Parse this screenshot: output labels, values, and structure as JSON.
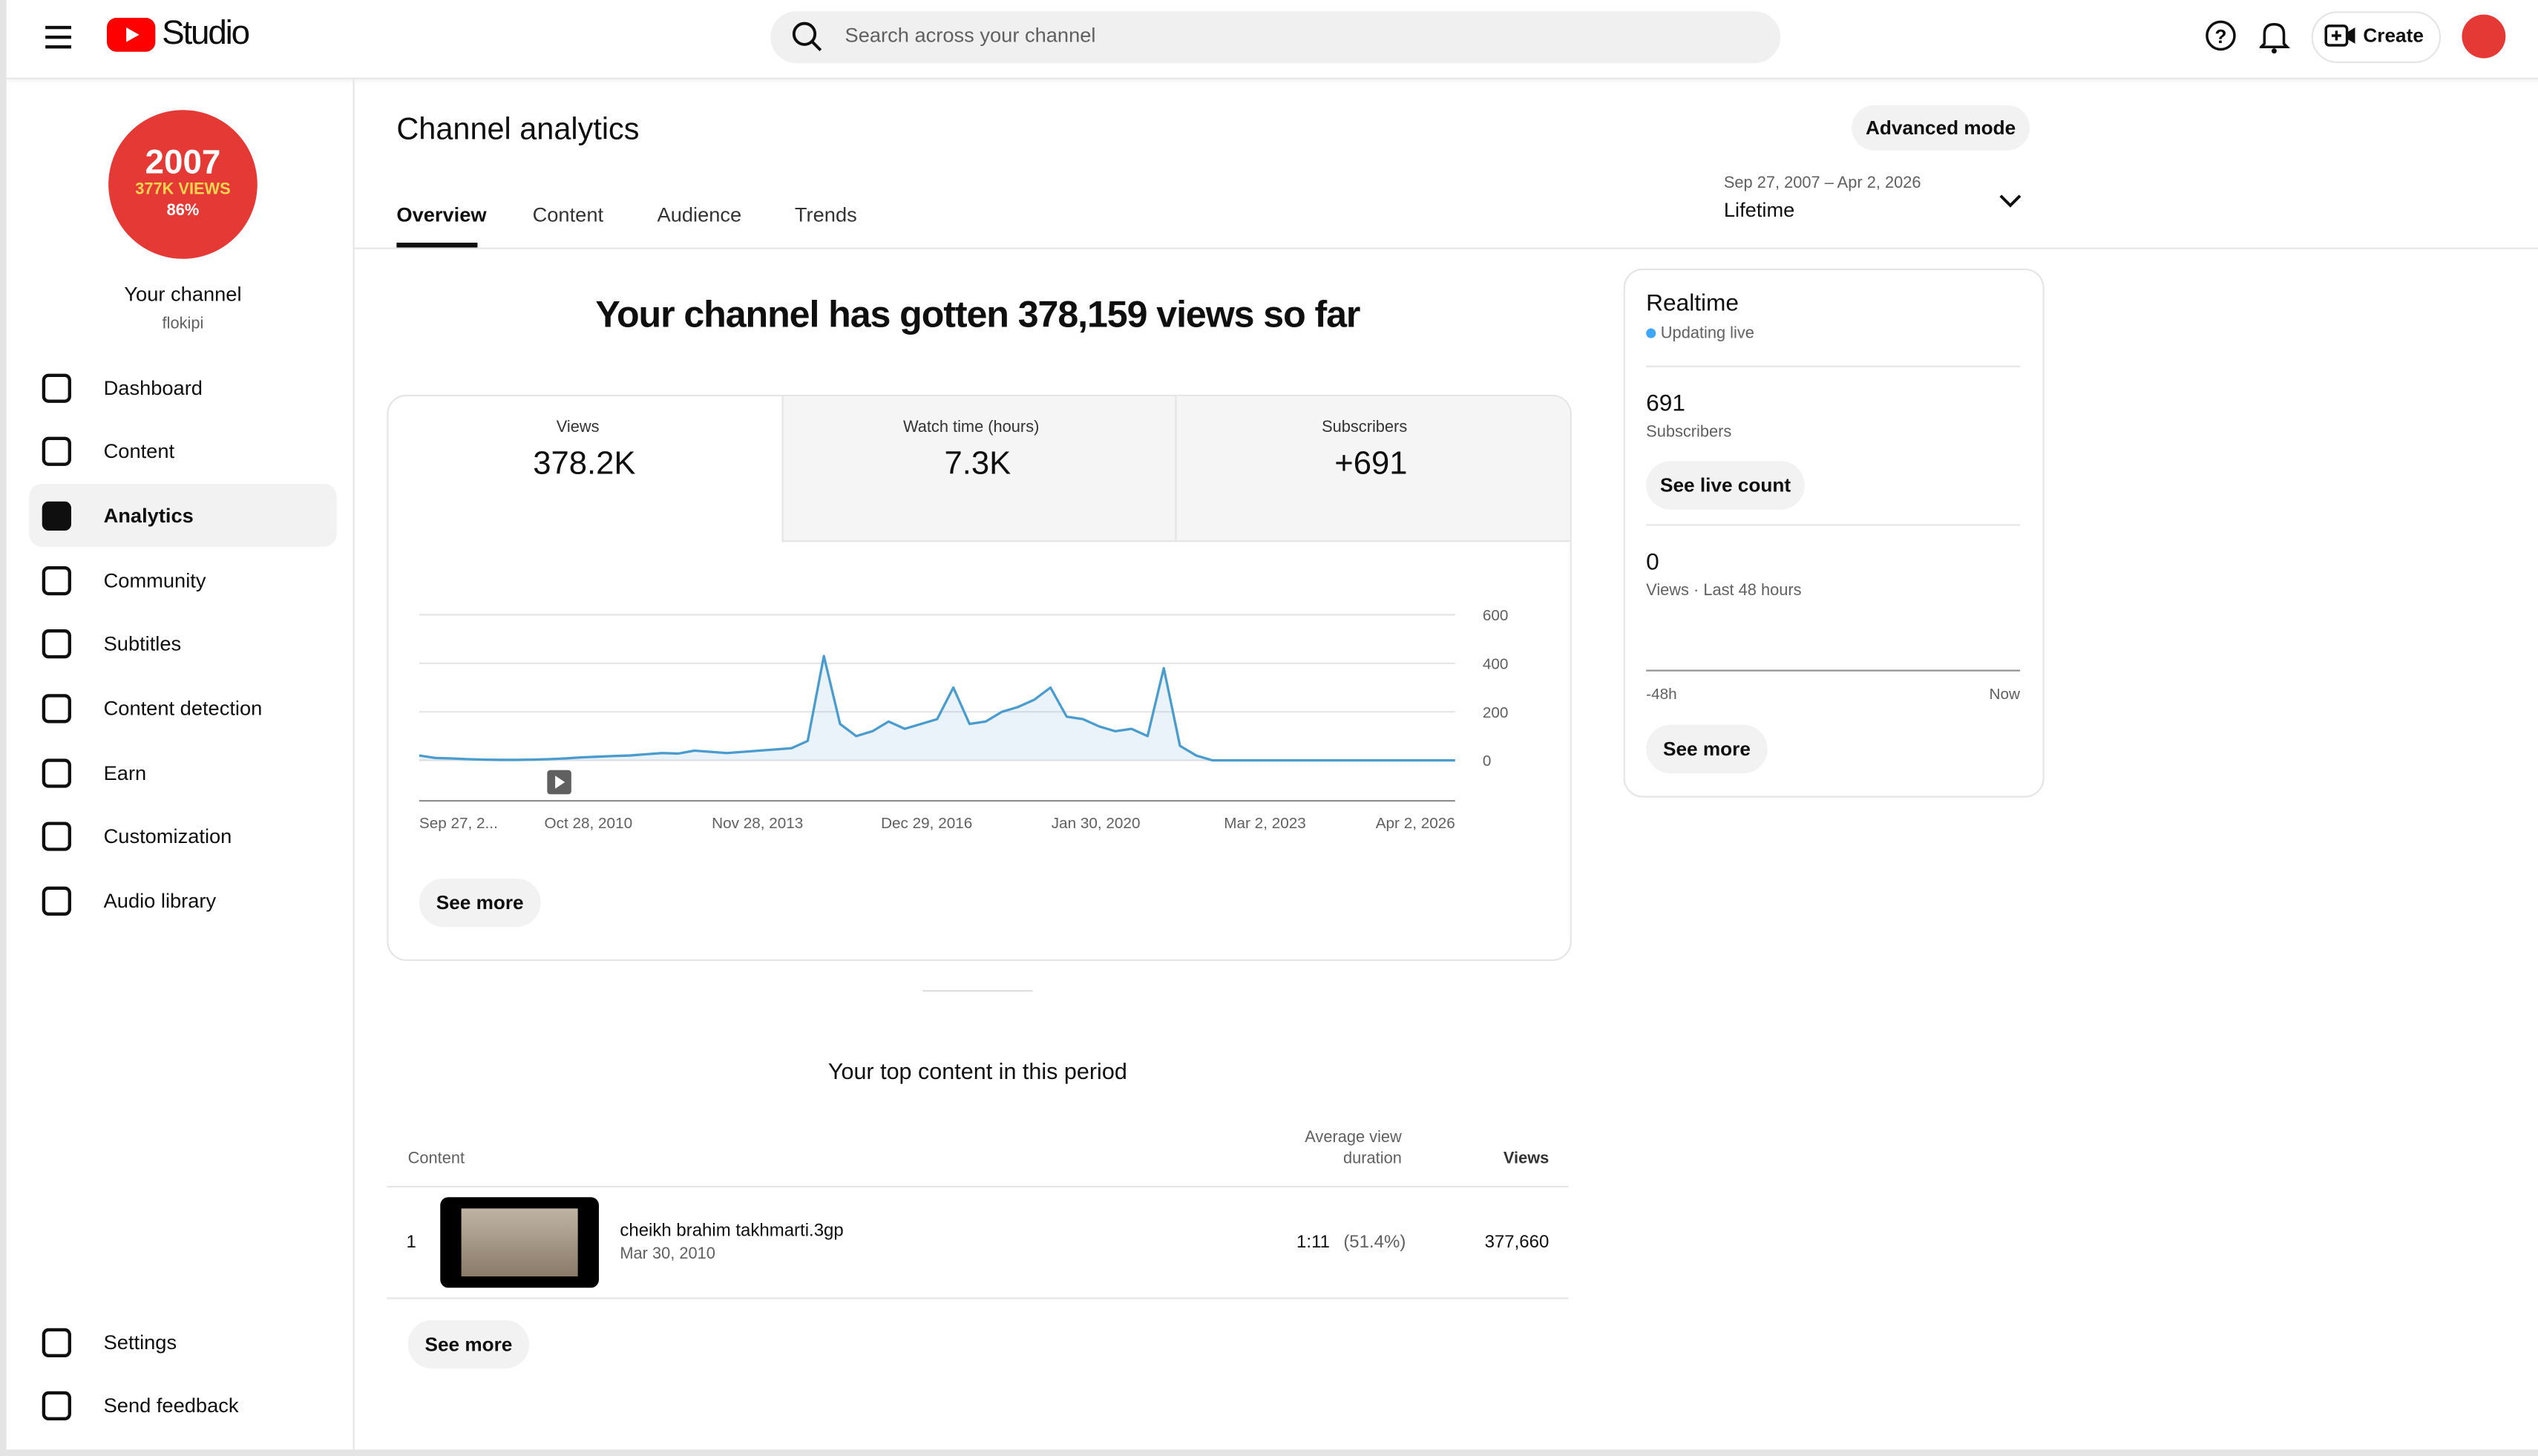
{
  "header": {
    "logo_text": "Studio",
    "search_placeholder": "Search across your channel",
    "create": "Create"
  },
  "sidebar": {
    "avatar_lines": [
      "2007",
      "377K VIEWS",
      "86%"
    ],
    "channel_title": "Your channel",
    "handle": "flokipi",
    "nav": [
      "Dashboard",
      "Content",
      "Analytics",
      "Community",
      "Subtitles",
      "Content detection",
      "Earn",
      "Customization",
      "Audio library"
    ],
    "footer_nav": [
      "Settings",
      "Send feedback"
    ]
  },
  "page": {
    "title": "Channel analytics",
    "advanced_mode": "Advanced mode",
    "tabs": [
      "Overview",
      "Content",
      "Audience",
      "Trends"
    ],
    "date_range": "Sep 27, 2007 – Apr 2, 2026",
    "period": "Lifetime"
  },
  "summary": {
    "headline": "Your channel has gotten 378,159 views so far",
    "metrics": [
      {
        "label": "Views",
        "value": "378.2K"
      },
      {
        "label": "Watch time (hours)",
        "value": "7.3K"
      },
      {
        "label": "Subscribers",
        "value": "+691"
      }
    ],
    "see_more": "See more"
  },
  "chart": {
    "type": "line",
    "color": "#4a9ccf",
    "ylim": [
      0,
      600
    ],
    "yticks": [
      0,
      200,
      400,
      600
    ],
    "xtick_labels": [
      "Sep 27, 2...",
      "Oct 28, 2010",
      "Nov 28, 2013",
      "Dec 29, 2016",
      "Jan 30, 2020",
      "Mar 2, 2023",
      "Apr 2, 2026"
    ],
    "values": [
      20,
      10,
      8,
      5,
      3,
      2,
      2,
      3,
      5,
      8,
      12,
      15,
      18,
      20,
      25,
      30,
      28,
      40,
      35,
      30,
      35,
      40,
      45,
      50,
      80,
      430,
      150,
      100,
      120,
      160,
      130,
      150,
      170,
      300,
      150,
      160,
      200,
      220,
      250,
      300,
      180,
      170,
      140,
      120,
      130,
      100,
      380,
      60,
      20,
      0,
      0,
      0,
      0,
      0,
      0,
      0,
      0,
      0,
      0,
      0,
      0,
      0,
      0,
      0,
      0
    ]
  },
  "realtime": {
    "title": "Realtime",
    "status": "Updating live",
    "subscribers_value": "691",
    "subscribers_label": "Subscribers",
    "see_live_count": "See live count",
    "views_value": "0",
    "views_label": "Views · Last 48 hours",
    "axis_start": "-48h",
    "axis_end": "Now",
    "see_more": "See more"
  },
  "top_content": {
    "title": "Your top content in this period",
    "columns": [
      "Content",
      "Average view duration",
      "Views"
    ],
    "rows": [
      {
        "rank": "1",
        "title": "cheikh brahim takhmarti.3gp",
        "date": "Mar 30, 2010",
        "duration": "1:11",
        "percent": "(51.4%)",
        "views": "377,660"
      }
    ],
    "see_more": "See more"
  }
}
